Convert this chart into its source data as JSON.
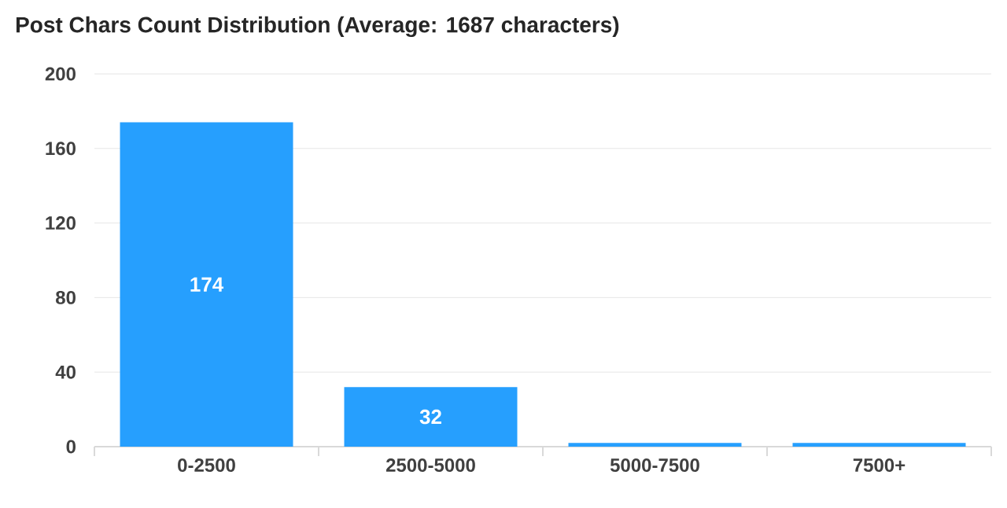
{
  "chart_data": {
    "type": "bar",
    "title": "Post Chars Count Distribution (Average: 1687 characters)",
    "categories": [
      "0-2500",
      "2500-5000",
      "5000-7500",
      "7500+"
    ],
    "values": [
      174,
      32,
      2,
      2
    ],
    "value_labels": [
      "174",
      "32",
      null,
      null
    ],
    "color": "#269ffe",
    "ylim": [
      0,
      200
    ],
    "yticks": [
      0,
      40,
      80,
      120,
      160,
      200
    ],
    "grid": "y"
  }
}
